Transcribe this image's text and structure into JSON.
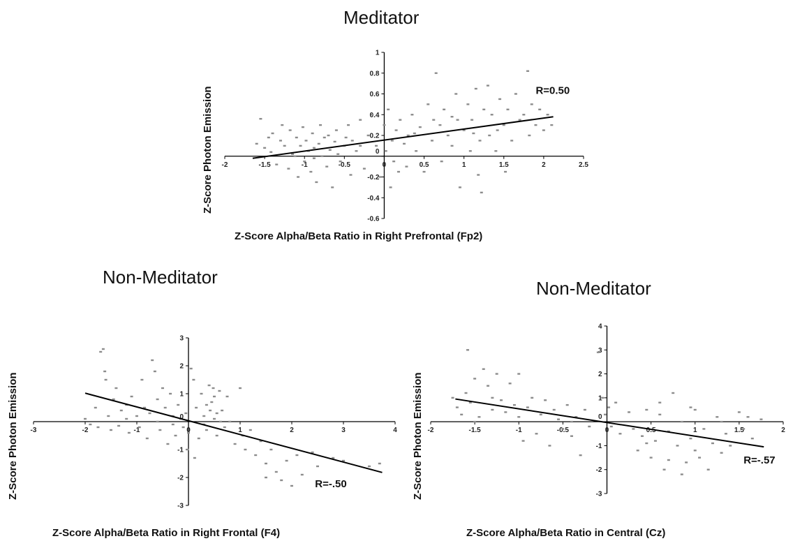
{
  "chart_data": [
    {
      "type": "scatter",
      "title": "Meditator",
      "xlabel": "Z-Score Alpha/Beta Ratio in Right Prefrontal (Fp2)",
      "ylabel": "Z-Score Photon Emission",
      "xlim": [
        -2,
        2.5
      ],
      "ylim": [
        -0.6,
        1
      ],
      "x_ticks": [
        -2,
        -1.5,
        -1,
        -0.5,
        0,
        0.5,
        1,
        1.5,
        2,
        2.5
      ],
      "x_tick_labels": [
        "-2",
        "-1.5",
        "-1",
        "-0.5",
        "0",
        "0.5",
        "1",
        "1.5",
        "2",
        "2.5"
      ],
      "y_ticks": [
        -0.6,
        -0.4,
        -0.2,
        0,
        0.2,
        0.4,
        0.6,
        0.8,
        1
      ],
      "y_tick_labels": [
        "-0.6",
        "-0.4",
        "-0.2",
        "0",
        "0.2",
        "0.4",
        "0.6",
        "0.8",
        "1"
      ],
      "annotation": "R=0.50",
      "annotation_pos": [
        1.9,
        0.6
      ],
      "trendline": {
        "x": [
          -1.65,
          2.12
        ],
        "y": [
          -0.02,
          0.38
        ]
      },
      "points": [
        [
          -1.6,
          0.12
        ],
        [
          -1.55,
          0.36
        ],
        [
          -1.5,
          0.08
        ],
        [
          -1.45,
          0.18
        ],
        [
          -1.42,
          0.04
        ],
        [
          -1.4,
          0.22
        ],
        [
          -1.35,
          -0.08
        ],
        [
          -1.3,
          0.15
        ],
        [
          -1.28,
          0.3
        ],
        [
          -1.25,
          0.1
        ],
        [
          -1.2,
          -0.12
        ],
        [
          -1.18,
          0.25
        ],
        [
          -1.15,
          0.02
        ],
        [
          -1.1,
          0.18
        ],
        [
          -1.08,
          -0.2
        ],
        [
          -1.05,
          0.1
        ],
        [
          -1.02,
          0.28
        ],
        [
          -1.0,
          -0.05
        ],
        [
          -0.98,
          0.15
        ],
        [
          -0.95,
          0.05
        ],
        [
          -0.92,
          -0.15
        ],
        [
          -0.9,
          0.22
        ],
        [
          -0.88,
          0.08
        ],
        [
          -0.85,
          -0.25
        ],
        [
          -0.82,
          0.12
        ],
        [
          -0.8,
          0.3
        ],
        [
          -0.78,
          0.0
        ],
        [
          -0.75,
          0.18
        ],
        [
          -0.72,
          -0.1
        ],
        [
          -0.7,
          0.2
        ],
        [
          -0.68,
          0.06
        ],
        [
          -0.65,
          -0.3
        ],
        [
          -0.62,
          0.14
        ],
        [
          -0.6,
          0.25
        ],
        [
          -0.55,
          -0.05
        ],
        [
          -0.5,
          0.1
        ],
        [
          -0.45,
          0.3
        ],
        [
          -0.42,
          -0.18
        ],
        [
          -0.4,
          0.15
        ],
        [
          -0.35,
          0.05
        ],
        [
          -0.3,
          0.35
        ],
        [
          -0.25,
          -0.12
        ],
        [
          -0.2,
          0.2
        ],
        [
          -0.15,
          0.4
        ],
        [
          -0.1,
          0.1
        ],
        [
          -0.05,
          -0.2
        ],
        [
          0.0,
          0.3
        ],
        [
          0.02,
          0.05
        ],
        [
          0.05,
          0.45
        ],
        [
          0.08,
          -0.3
        ],
        [
          0.1,
          0.15
        ],
        [
          0.12,
          -0.05
        ],
        [
          0.15,
          0.25
        ],
        [
          0.18,
          -0.15
        ],
        [
          0.2,
          0.35
        ],
        [
          0.25,
          0.12
        ],
        [
          0.28,
          -0.1
        ],
        [
          0.3,
          0.2
        ],
        [
          0.35,
          0.4
        ],
        [
          0.4,
          0.05
        ],
        [
          0.45,
          0.28
        ],
        [
          0.5,
          -0.15
        ],
        [
          0.55,
          0.5
        ],
        [
          0.6,
          0.15
        ],
        [
          0.65,
          0.8
        ],
        [
          0.7,
          0.3
        ],
        [
          0.72,
          -0.05
        ],
        [
          0.75,
          0.45
        ],
        [
          0.8,
          0.2
        ],
        [
          0.85,
          0.1
        ],
        [
          0.9,
          0.6
        ],
        [
          0.92,
          0.35
        ],
        [
          0.95,
          -0.3
        ],
        [
          1.0,
          0.25
        ],
        [
          1.05,
          0.5
        ],
        [
          1.08,
          0.05
        ],
        [
          1.1,
          0.35
        ],
        [
          1.15,
          0.65
        ],
        [
          1.18,
          -0.18
        ],
        [
          1.2,
          0.15
        ],
        [
          1.22,
          -0.35
        ],
        [
          1.25,
          0.45
        ],
        [
          1.3,
          0.68
        ],
        [
          1.32,
          0.2
        ],
        [
          1.35,
          0.4
        ],
        [
          1.4,
          0.05
        ],
        [
          1.45,
          0.55
        ],
        [
          1.5,
          0.3
        ],
        [
          1.52,
          -0.15
        ],
        [
          1.55,
          0.45
        ],
        [
          1.6,
          0.15
        ],
        [
          1.65,
          0.6
        ],
        [
          1.7,
          0.35
        ],
        [
          1.75,
          0.4
        ],
        [
          1.8,
          0.82
        ],
        [
          1.82,
          0.2
        ],
        [
          1.85,
          0.5
        ],
        [
          1.9,
          0.3
        ],
        [
          1.95,
          0.45
        ],
        [
          2.0,
          0.25
        ],
        [
          2.05,
          0.4
        ],
        [
          2.1,
          0.3
        ],
        [
          -1.12,
          0.0
        ],
        [
          -0.58,
          0.02
        ],
        [
          -0.3,
          0.1
        ],
        [
          0.38,
          0.22
        ],
        [
          0.62,
          0.35
        ],
        [
          1.12,
          0.22
        ],
        [
          1.42,
          0.25
        ],
        [
          -0.88,
          -0.02
        ],
        [
          -0.48,
          0.18
        ],
        [
          0.85,
          0.38
        ]
      ]
    },
    {
      "type": "scatter",
      "title": "Non-Meditator",
      "xlabel": "Z-Score Alpha/Beta Ratio in Right Frontal (F4)",
      "ylabel": "Z-Score Photon Emission",
      "xlim": [
        -3,
        4
      ],
      "ylim": [
        -3,
        3
      ],
      "x_ticks": [
        -3,
        -2,
        -1,
        0,
        1,
        2,
        3,
        4
      ],
      "x_tick_labels": [
        "-3",
        "-2",
        "-1",
        "0",
        "1",
        "2",
        "3",
        "4"
      ],
      "y_ticks": [
        -3,
        -2,
        -1,
        0,
        1,
        2,
        3
      ],
      "y_tick_labels": [
        "-3",
        "-2",
        "-1",
        "0",
        "1",
        "2",
        "3"
      ],
      "annotation": "R=-.50",
      "annotation_pos": [
        2.45,
        -2.35
      ],
      "trendline": {
        "x": [
          -2.0,
          3.75
        ],
        "y": [
          1.02,
          -1.82
        ]
      },
      "points": [
        [
          -2.0,
          0.1
        ],
        [
          -1.9,
          -0.1
        ],
        [
          -1.8,
          0.5
        ],
        [
          -1.75,
          -0.2
        ],
        [
          -1.7,
          2.5
        ],
        [
          -1.65,
          2.6
        ],
        [
          -1.62,
          1.8
        ],
        [
          -1.6,
          1.5
        ],
        [
          -1.55,
          0.2
        ],
        [
          -1.5,
          -0.3
        ],
        [
          -1.45,
          0.8
        ],
        [
          -1.4,
          1.2
        ],
        [
          -1.35,
          -0.15
        ],
        [
          -1.3,
          0.4
        ],
        [
          -1.2,
          0.6
        ],
        [
          -1.15,
          -0.4
        ],
        [
          -1.1,
          0.9
        ],
        [
          -1.0,
          0.2
        ],
        [
          -0.95,
          -0.2
        ],
        [
          -0.9,
          1.5
        ],
        [
          -0.85,
          0.5
        ],
        [
          -0.8,
          -0.6
        ],
        [
          -0.75,
          0.3
        ],
        [
          -0.7,
          2.2
        ],
        [
          -0.65,
          1.8
        ],
        [
          -0.6,
          0.8
        ],
        [
          -0.55,
          -0.3
        ],
        [
          -0.5,
          1.2
        ],
        [
          -0.45,
          0.5
        ],
        [
          -0.4,
          -0.8
        ],
        [
          -0.35,
          1.0
        ],
        [
          -0.3,
          0.2
        ],
        [
          -0.25,
          -0.5
        ],
        [
          -0.2,
          0.6
        ],
        [
          -0.15,
          0.1
        ],
        [
          -0.1,
          -0.2
        ],
        [
          -0.05,
          0.3
        ],
        [
          0.0,
          -0.4
        ],
        [
          0.05,
          1.9
        ],
        [
          0.1,
          1.5
        ],
        [
          0.15,
          0.5
        ],
        [
          0.2,
          -0.6
        ],
        [
          0.25,
          1.0
        ],
        [
          0.3,
          0.2
        ],
        [
          0.35,
          -0.3
        ],
        [
          0.4,
          1.3
        ],
        [
          0.45,
          0.7
        ],
        [
          0.5,
          0.1
        ],
        [
          0.55,
          -0.5
        ],
        [
          0.6,
          1.1
        ],
        [
          0.65,
          0.4
        ],
        [
          0.7,
          -0.2
        ],
        [
          0.75,
          0.9
        ],
        [
          0.8,
          0.0
        ],
        [
          0.9,
          -0.8
        ],
        [
          1.0,
          1.2
        ],
        [
          1.05,
          -0.5
        ],
        [
          1.1,
          -1.0
        ],
        [
          1.2,
          -0.3
        ],
        [
          1.3,
          -1.2
        ],
        [
          1.4,
          -0.7
        ],
        [
          1.5,
          -1.5
        ],
        [
          1.6,
          -1.0
        ],
        [
          1.7,
          -1.8
        ],
        [
          1.8,
          -2.1
        ],
        [
          1.9,
          -1.4
        ],
        [
          2.0,
          -2.3
        ],
        [
          2.1,
          -1.2
        ],
        [
          2.2,
          -1.9
        ],
        [
          2.4,
          -1.1
        ],
        [
          2.5,
          -1.6
        ],
        [
          2.8,
          -1.3
        ],
        [
          3.0,
          -1.4
        ],
        [
          3.5,
          -1.6
        ],
        [
          3.7,
          -1.5
        ],
        [
          0.42,
          0.4
        ],
        [
          0.5,
          0.9
        ],
        [
          0.35,
          0.6
        ],
        [
          0.55,
          0.3
        ],
        [
          0.48,
          1.2
        ],
        [
          -0.02,
          -1.0
        ],
        [
          0.12,
          -1.3
        ],
        [
          -0.6,
          0.0
        ],
        [
          -1.2,
          0.1
        ],
        [
          0.3,
          -0.1
        ],
        [
          0.62,
          0.0
        ],
        [
          -0.3,
          -0.1
        ],
        [
          1.5,
          -2.0
        ]
      ]
    },
    {
      "type": "scatter",
      "title": "Non-Meditator",
      "xlabel": "Z-Score Alpha/Beta Ratio in Central (Cz)",
      "ylabel": "Z-Score Photon Emission",
      "xlim": [
        -2,
        2
      ],
      "ylim": [
        -3,
        4
      ],
      "x_ticks": [
        -2,
        -1.5,
        -1,
        -0.5,
        0,
        0.5,
        1,
        1.5,
        2
      ],
      "x_tick_labels": [
        "-2",
        "-1.5",
        "-1",
        "-0.5",
        "0",
        "0.5",
        "1",
        "1.5",
        "2"
      ],
      "y_ticks": [
        -3,
        -2,
        -1,
        0,
        1,
        2,
        3,
        4
      ],
      "y_tick_labels": [
        "-3",
        "-2",
        "-1",
        "0",
        "1",
        "2",
        "3",
        "4"
      ],
      "annotation": "R=-.57",
      "annotation_pos": [
        1.55,
        -1.75
      ],
      "trendline": {
        "x": [
          -1.72,
          1.78
        ],
        "y": [
          0.95,
          -1.05
        ]
      },
      "points": [
        [
          -1.75,
          1.0
        ],
        [
          -1.7,
          0.6
        ],
        [
          -1.65,
          0.3
        ],
        [
          -1.6,
          1.2
        ],
        [
          -1.58,
          3.0
        ],
        [
          -1.55,
          0.8
        ],
        [
          -1.5,
          1.8
        ],
        [
          -1.45,
          0.2
        ],
        [
          -1.4,
          2.2
        ],
        [
          -1.35,
          1.5
        ],
        [
          -1.3,
          0.5
        ],
        [
          -1.25,
          2.0
        ],
        [
          -1.2,
          0.9
        ],
        [
          -1.15,
          0.4
        ],
        [
          -1.1,
          1.6
        ],
        [
          -1.05,
          0.7
        ],
        [
          -1.0,
          2.0
        ],
        [
          -0.95,
          -0.8
        ],
        [
          -0.9,
          0.6
        ],
        [
          -0.85,
          1.0
        ],
        [
          -0.8,
          -0.5
        ],
        [
          -0.75,
          0.3
        ],
        [
          -0.7,
          0.9
        ],
        [
          -0.65,
          -1.0
        ],
        [
          -0.6,
          0.5
        ],
        [
          -0.55,
          0.1
        ],
        [
          -0.5,
          -0.3
        ],
        [
          -0.45,
          0.7
        ],
        [
          -0.4,
          -0.6
        ],
        [
          -0.35,
          0.2
        ],
        [
          -0.3,
          -1.4
        ],
        [
          -0.25,
          0.5
        ],
        [
          -0.2,
          -0.2
        ],
        [
          -0.1,
          2.9
        ],
        [
          -0.05,
          1.0
        ],
        [
          -0.02,
          0.3
        ],
        [
          0.02,
          0.6
        ],
        [
          0.05,
          -0.2
        ],
        [
          0.1,
          0.8
        ],
        [
          0.15,
          -0.5
        ],
        [
          0.3,
          -0.3
        ],
        [
          0.35,
          -1.2
        ],
        [
          0.4,
          -0.6
        ],
        [
          0.45,
          0.5
        ],
        [
          0.5,
          -1.5
        ],
        [
          0.55,
          -0.8
        ],
        [
          0.6,
          0.3
        ],
        [
          0.65,
          -2.0
        ],
        [
          0.7,
          -0.4
        ],
        [
          0.75,
          1.2
        ],
        [
          0.8,
          -1.0
        ],
        [
          0.85,
          0.0
        ],
        [
          0.9,
          -1.7
        ],
        [
          0.95,
          -0.7
        ],
        [
          1.0,
          0.5
        ],
        [
          1.05,
          -1.5
        ],
        [
          1.1,
          -0.3
        ],
        [
          1.15,
          -2.0
        ],
        [
          1.2,
          -0.9
        ],
        [
          1.25,
          0.2
        ],
        [
          1.3,
          -1.3
        ],
        [
          1.35,
          -0.5
        ],
        [
          1.4,
          -1.0
        ],
        [
          1.5,
          0.4
        ],
        [
          1.55,
          -0.3
        ],
        [
          1.6,
          0.2
        ],
        [
          1.65,
          -0.7
        ],
        [
          1.75,
          0.1
        ],
        [
          -1.5,
          0.0
        ],
        [
          -1.3,
          1.0
        ],
        [
          0.6,
          0.8
        ],
        [
          0.85,
          -2.2
        ],
        [
          1.0,
          -1.2
        ],
        [
          0.7,
          -1.6
        ],
        [
          0.95,
          0.6
        ],
        [
          -0.4,
          0.0
        ],
        [
          -1.0,
          0.2
        ],
        [
          1.3,
          0.0
        ],
        [
          0.45,
          -0.9
        ],
        [
          0.25,
          0.4
        ]
      ]
    }
  ]
}
